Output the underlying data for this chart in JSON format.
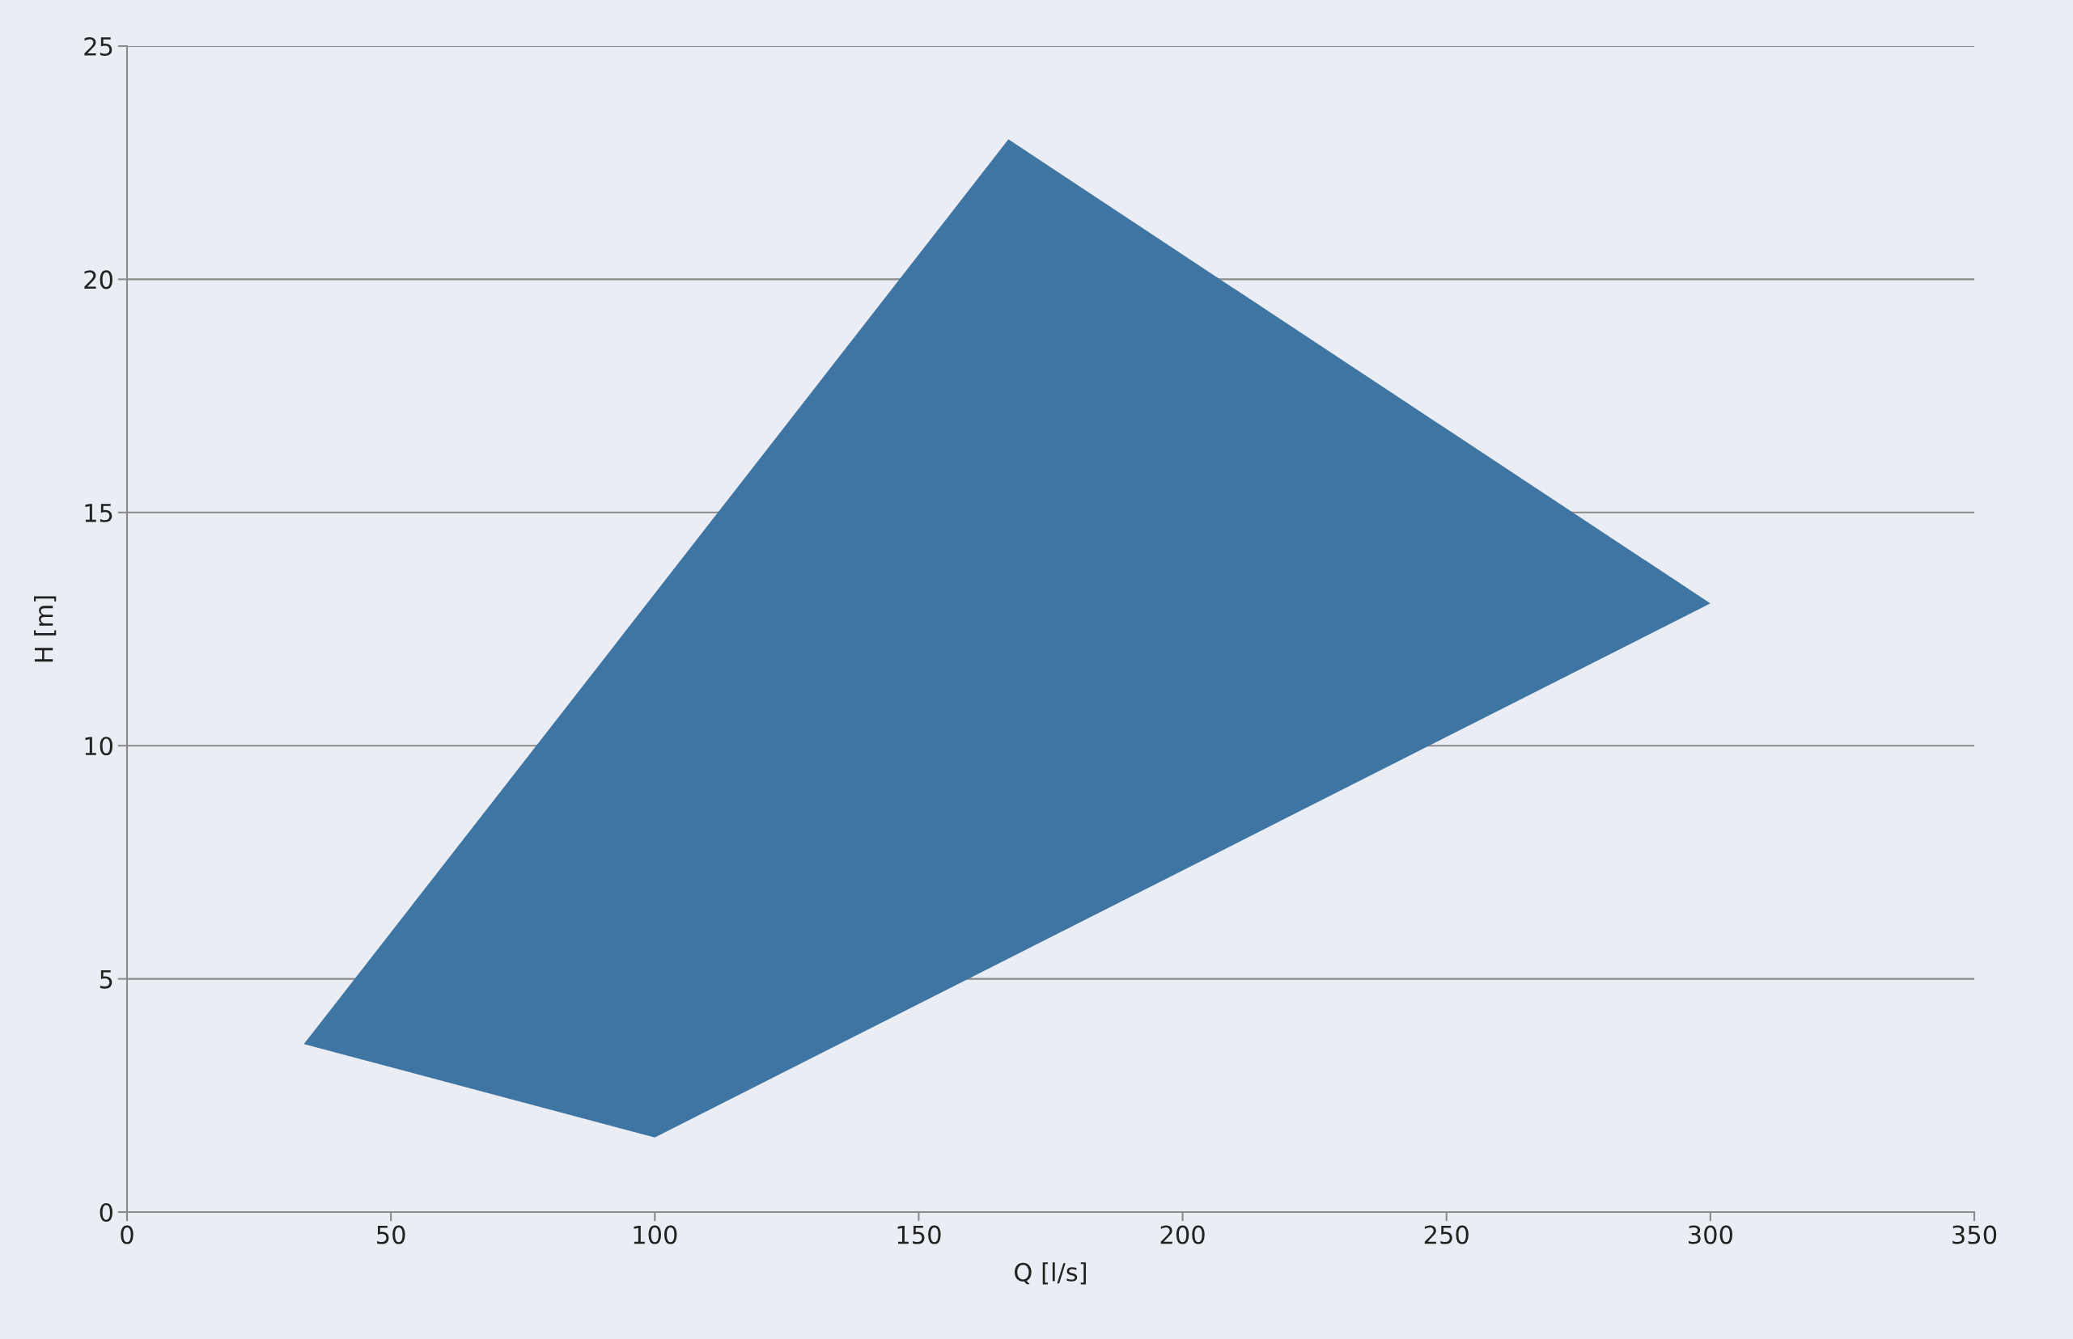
{
  "chart_data": {
    "type": "area",
    "xlabel": "Q [l/s]",
    "ylabel": "H [m]",
    "series": [
      {
        "color": "#3f75a3",
        "x": [
          33.5,
          100,
          300,
          167,
          33.5
        ],
        "values": [
          3.6,
          1.6,
          13.05,
          23.0,
          3.6
        ]
      }
    ],
    "xlim": [
      0,
      350
    ],
    "ylim": [
      0,
      25
    ],
    "xticks": [
      0,
      50,
      100,
      150,
      200,
      250,
      300,
      350
    ],
    "yticks": [
      0,
      5,
      10,
      15,
      20,
      25
    ],
    "grid": "y"
  }
}
